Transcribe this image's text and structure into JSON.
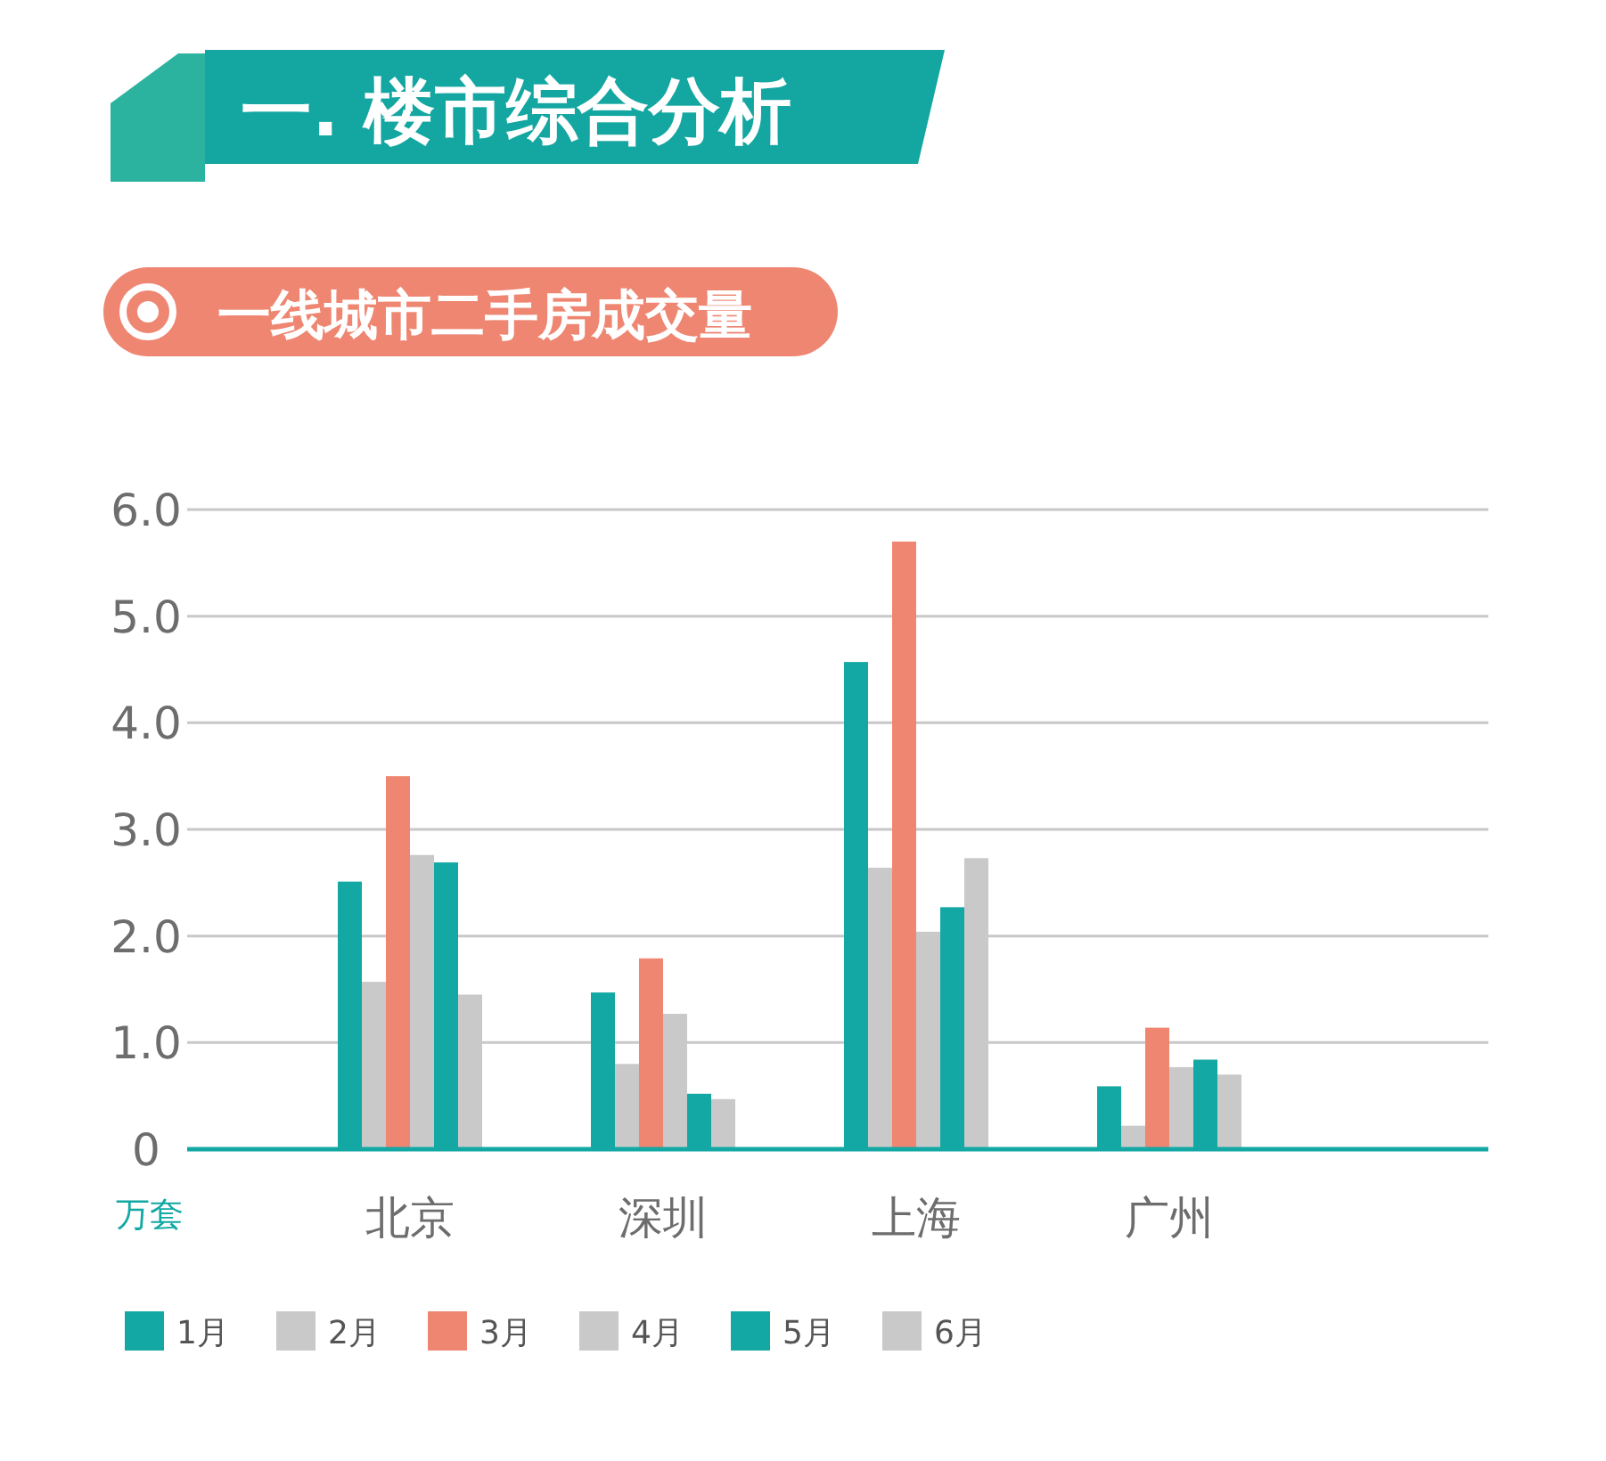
{
  "chart_data": {
    "type": "bar",
    "title": "一. 楼市综合分析",
    "subtitle": "一线城市二手房成交量",
    "ylabel": "万套",
    "categories": [
      "北京",
      "深圳",
      "上海",
      "广州"
    ],
    "series": [
      {
        "name": "1月",
        "color": "#13a8a4",
        "values": [
          2.51,
          1.47,
          4.57,
          0.59
        ]
      },
      {
        "name": "2月",
        "color": "#c9c9ca",
        "values": [
          1.57,
          0.8,
          2.64,
          0.22
        ]
      },
      {
        "name": "3月",
        "color": "#ee8672",
        "values": [
          3.5,
          1.79,
          5.7,
          1.14
        ]
      },
      {
        "name": "4月",
        "color": "#c9c9ca",
        "values": [
          2.76,
          1.27,
          2.04,
          0.77
        ]
      },
      {
        "name": "5月",
        "color": "#13a8a4",
        "values": [
          2.69,
          0.52,
          2.27,
          0.84
        ]
      },
      {
        "name": "6月",
        "color": "#c9c9ca",
        "values": [
          1.45,
          0.47,
          2.73,
          0.7
        ]
      }
    ],
    "ylim": [
      0,
      6
    ],
    "yticks": [
      0,
      {
        "value": 1,
        "label": "1.0"
      },
      {
        "value": 2,
        "label": "2.0"
      },
      {
        "value": 3,
        "label": "3.0"
      },
      {
        "value": 4,
        "label": "4.0"
      },
      {
        "value": 5,
        "label": "5.0"
      },
      {
        "value": 6,
        "label": "6.0"
      }
    ],
    "grid": "y",
    "legend": "bottom left"
  }
}
